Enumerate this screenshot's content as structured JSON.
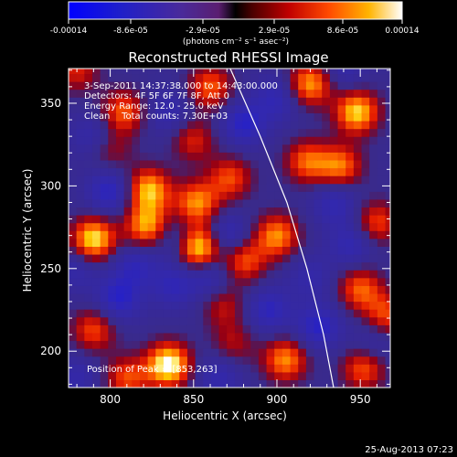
{
  "chart_data": {
    "type": "heatmap",
    "title": "Reconstructed RHESSI Image",
    "xlabel": "Heliocentric X (arcsec)",
    "ylabel": "Heliocentric Y (arcsec)",
    "xlim": [
      775,
      968
    ],
    "ylim": [
      178,
      371
    ],
    "xticks": [
      800,
      850,
      900,
      950
    ],
    "yticks": [
      200,
      250,
      300,
      350
    ],
    "colorbar": {
      "min": -0.00014,
      "max": 0.00014,
      "tick_labels": [
        "-0.00014",
        "-8.6e-05",
        "-2.9e-05",
        "2.9e-05",
        "8.6e-05",
        "0.00014"
      ],
      "unit_label": "(photons cm⁻² s⁻¹ asec⁻²)"
    },
    "annotations": [
      "3-Sep-2011 14:37:38.000 to 14:43:00.000",
      "Detectors: 4F 5F 6F 7F 8F, Att 0",
      "Energy Range: 12.0 - 25.0 keV",
      "Clean    Total counts: 7.30E+03"
    ],
    "position_text": "Position of Peak = [853,263]",
    "limb_curve_x_at_y": [
      [
        872,
        371
      ],
      [
        890,
        330
      ],
      [
        906,
        290
      ],
      [
        918,
        250
      ],
      [
        928,
        210
      ],
      [
        934,
        178
      ]
    ],
    "sources": [
      {
        "x": 835,
        "y": 192,
        "amp": 1.0
      },
      {
        "x": 853,
        "y": 263,
        "amp": 1.0
      },
      {
        "x": 790,
        "y": 268,
        "amp": 0.9
      },
      {
        "x": 822,
        "y": 276,
        "amp": 0.75
      },
      {
        "x": 823,
        "y": 298,
        "amp": 0.8
      },
      {
        "x": 852,
        "y": 290,
        "amp": 0.7
      },
      {
        "x": 872,
        "y": 305,
        "amp": 0.55
      },
      {
        "x": 880,
        "y": 255,
        "amp": 0.6
      },
      {
        "x": 900,
        "y": 270,
        "amp": 0.7
      },
      {
        "x": 918,
        "y": 315,
        "amp": 0.6
      },
      {
        "x": 920,
        "y": 362,
        "amp": 0.75
      },
      {
        "x": 948,
        "y": 345,
        "amp": 0.85
      },
      {
        "x": 938,
        "y": 312,
        "amp": 0.65
      },
      {
        "x": 960,
        "y": 278,
        "amp": 0.55
      },
      {
        "x": 950,
        "y": 238,
        "amp": 0.6
      },
      {
        "x": 905,
        "y": 195,
        "amp": 0.7
      },
      {
        "x": 952,
        "y": 190,
        "amp": 0.6
      },
      {
        "x": 790,
        "y": 213,
        "amp": 0.55
      },
      {
        "x": 808,
        "y": 345,
        "amp": 0.6
      },
      {
        "x": 860,
        "y": 360,
        "amp": 0.6
      },
      {
        "x": 850,
        "y": 328,
        "amp": 0.45
      },
      {
        "x": 800,
        "y": 322,
        "amp": 0.35
      },
      {
        "x": 868,
        "y": 228,
        "amp": 0.4
      },
      {
        "x": 780,
        "y": 370,
        "amp": 0.45
      },
      {
        "x": 810,
        "y": 184,
        "amp": 0.55
      },
      {
        "x": 874,
        "y": 205,
        "amp": 0.35
      },
      {
        "x": 966,
        "y": 222,
        "amp": 0.55
      }
    ],
    "negatives": [
      {
        "x": 800,
        "y": 297,
        "amp": 0.9
      },
      {
        "x": 805,
        "y": 232,
        "amp": 0.9
      },
      {
        "x": 815,
        "y": 252,
        "amp": 0.7
      },
      {
        "x": 840,
        "y": 268,
        "amp": 0.6
      },
      {
        "x": 860,
        "y": 245,
        "amp": 0.7
      },
      {
        "x": 870,
        "y": 270,
        "amp": 0.8
      },
      {
        "x": 838,
        "y": 240,
        "amp": 0.7
      },
      {
        "x": 925,
        "y": 215,
        "amp": 0.9
      },
      {
        "x": 880,
        "y": 338,
        "amp": 0.9
      },
      {
        "x": 900,
        "y": 353,
        "amp": 0.7
      },
      {
        "x": 790,
        "y": 330,
        "amp": 0.6
      },
      {
        "x": 835,
        "y": 345,
        "amp": 0.6
      },
      {
        "x": 935,
        "y": 290,
        "amp": 0.7
      },
      {
        "x": 945,
        "y": 265,
        "amp": 0.7
      },
      {
        "x": 920,
        "y": 245,
        "amp": 0.5
      },
      {
        "x": 895,
        "y": 225,
        "amp": 0.8
      },
      {
        "x": 780,
        "y": 185,
        "amp": 0.5
      },
      {
        "x": 865,
        "y": 185,
        "amp": 0.6
      },
      {
        "x": 780,
        "y": 250,
        "amp": 0.5
      },
      {
        "x": 940,
        "y": 370,
        "amp": 0.5
      },
      {
        "x": 958,
        "y": 205,
        "amp": 0.5
      }
    ]
  },
  "footer": {
    "timestamp": "25-Aug-2013 07:23"
  }
}
